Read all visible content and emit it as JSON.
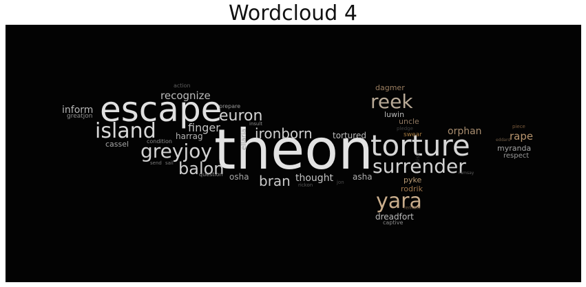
{
  "title": "Wordcloud 4",
  "colors": {
    "background": "#030303",
    "page": "#ffffff"
  },
  "words": [
    {
      "text": "theon",
      "color": "#e3e3e3"
    },
    {
      "text": "escape",
      "color": "#e0e0e0"
    },
    {
      "text": "torture",
      "color": "#d6d6d6"
    },
    {
      "text": "island",
      "color": "#d8d8d8"
    },
    {
      "text": "surrender",
      "color": "#d2d2d2"
    },
    {
      "text": "greyjoy",
      "color": "#d2d2d2"
    },
    {
      "text": "reek",
      "color": "#b8a996"
    },
    {
      "text": "yara",
      "color": "#c9ad8c"
    },
    {
      "text": "balon",
      "color": "#cfcfcf"
    },
    {
      "text": "euron",
      "color": "#d4d4d4"
    },
    {
      "text": "ironborn",
      "color": "#cfcfcf"
    },
    {
      "text": "bran",
      "color": "#c9c9c9"
    },
    {
      "text": "finger",
      "color": "#c4c4c4"
    },
    {
      "text": "recognize",
      "color": "#bcbcbc"
    },
    {
      "text": "inform",
      "color": "#b8b8b8"
    },
    {
      "text": "thought",
      "color": "#c4c4c4"
    },
    {
      "text": "tortured",
      "color": "#bdbdbd"
    },
    {
      "text": "orphan",
      "color": "#a88d6f"
    },
    {
      "text": "rape",
      "color": "#b8956e"
    },
    {
      "text": "harrag",
      "color": "#b4b4b4"
    },
    {
      "text": "cassel",
      "color": "#a8a8a8"
    },
    {
      "text": "greatjon",
      "color": "#8f8f8f"
    },
    {
      "text": "dagmer",
      "color": "#9a7e60"
    },
    {
      "text": "luwin",
      "color": "#b8b8b8"
    },
    {
      "text": "uncle",
      "color": "#8f7760"
    },
    {
      "text": "myranda",
      "color": "#a5a5a5"
    },
    {
      "text": "respect",
      "color": "#9a9a9a"
    },
    {
      "text": "asha",
      "color": "#b0b0b0"
    },
    {
      "text": "osha",
      "color": "#a8a8a8"
    },
    {
      "text": "pyke",
      "color": "#b89a74"
    },
    {
      "text": "rodrik",
      "color": "#a0784e"
    },
    {
      "text": "dreadfort",
      "color": "#bbbbbb"
    },
    {
      "text": "captive",
      "color": "#8a8a8a"
    },
    {
      "text": "remain",
      "color": "#6f5a44"
    },
    {
      "text": "swear",
      "color": "#a67a3f"
    },
    {
      "text": "ellaria",
      "color": "#9c9c9c"
    },
    {
      "text": "prepare",
      "color": "#9a9a9a"
    },
    {
      "text": "insult",
      "color": "#8c8c8c"
    },
    {
      "text": "condition",
      "color": "#8c8c8c"
    },
    {
      "text": "send",
      "color": "#7a7a7a"
    },
    {
      "text": "sail",
      "color": "#7a7a7a"
    },
    {
      "text": "question",
      "color": "#8c8c8c"
    },
    {
      "text": "rickon",
      "color": "#5a5a5a"
    },
    {
      "text": "jon",
      "color": "#4a4a4a"
    },
    {
      "text": "action",
      "color": "#5e5e5e"
    },
    {
      "text": "piece",
      "color": "#7a5a3c"
    },
    {
      "text": "eddard",
      "color": "#6f5a44"
    },
    {
      "text": "ramsay",
      "color": "#5e5e5e"
    },
    {
      "text": "pledge",
      "color": "#3f3f3f"
    },
    {
      "text": "sister",
      "color": "#3a3a3a"
    }
  ]
}
